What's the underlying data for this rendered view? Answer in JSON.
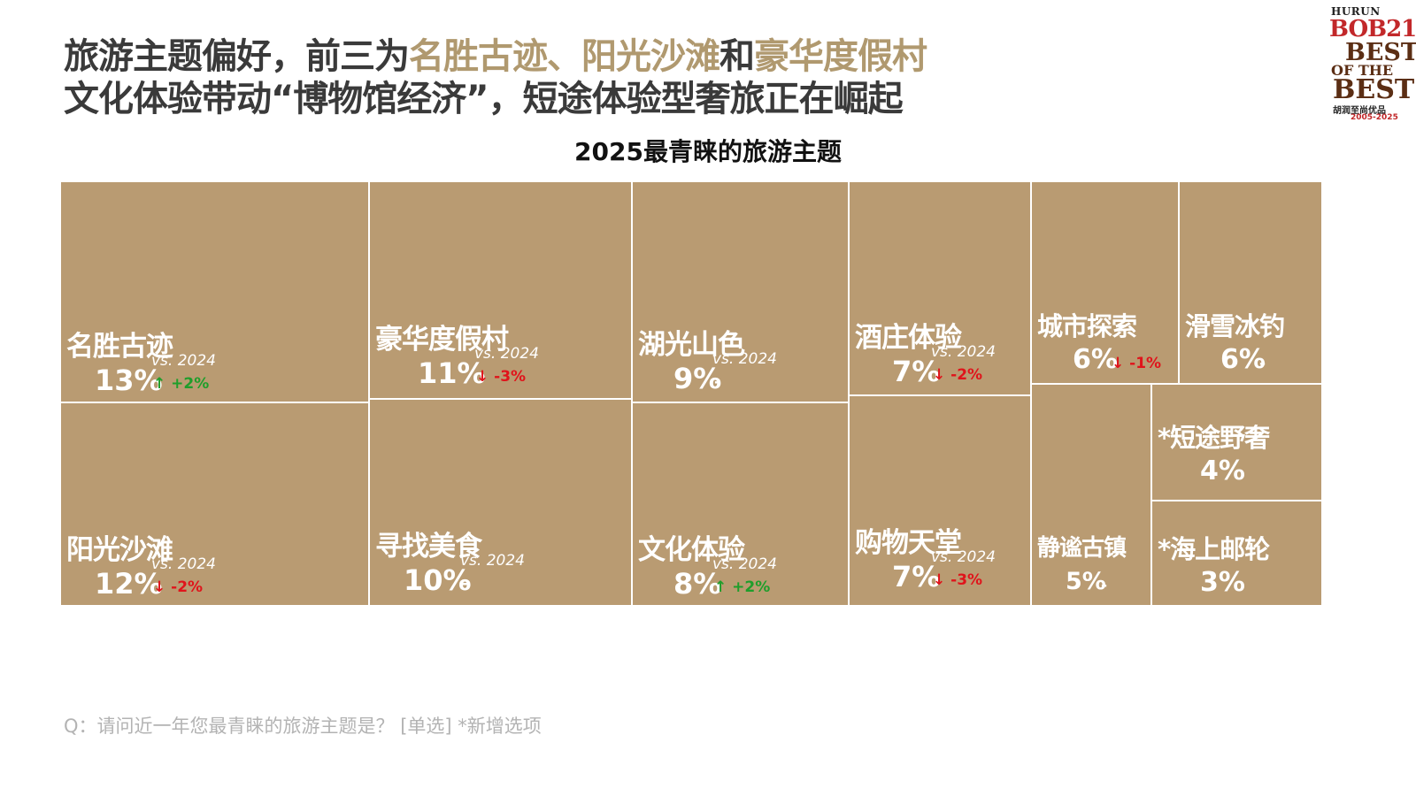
{
  "headline": {
    "line1": [
      {
        "text": "旅游主题偏好，前三为",
        "hl": false
      },
      {
        "text": "名胜古迹、阳光沙滩",
        "hl": true
      },
      {
        "text": "和",
        "hl": false
      },
      {
        "text": "豪华度假村",
        "hl": true
      }
    ],
    "line2": "文化体验带动“博物馆经济”，短途体验型奢旅正在崛起"
  },
  "logo": {
    "brand": "HURUN",
    "bob": "BOB21",
    "best1": "BEST",
    "of_the": "OF THE",
    "best2": "BEST",
    "cn": "胡润至尚优品",
    "years": "2005-2025"
  },
  "footnote": "Q：请问近一年您最青睐的旅游主题是？ [单选] *新增选项",
  "colors": {
    "tile": "#b99b72",
    "up": "#1f9e2b",
    "down": "#e0141b",
    "highlight": "#b0996f"
  },
  "chart_data": {
    "type": "treemap",
    "title": "2025最青睐的旅游主题",
    "vs_label": "vs. 2024",
    "items": [
      {
        "name": "名胜古迹",
        "value": 13,
        "value_label": "13%",
        "change": "+2%",
        "direction": "up"
      },
      {
        "name": "阳光沙滩",
        "value": 12,
        "value_label": "12%",
        "change": "-2%",
        "direction": "down"
      },
      {
        "name": "豪华度假村",
        "value": 11,
        "value_label": "11%",
        "change": "-3%",
        "direction": "down"
      },
      {
        "name": "寻找美食",
        "value": 10,
        "value_label": "10%",
        "change": "-",
        "direction": "flat"
      },
      {
        "name": "湖光山色",
        "value": 9,
        "value_label": "9%",
        "change": "-",
        "direction": "flat"
      },
      {
        "name": "文化体验",
        "value": 8,
        "value_label": "8%",
        "change": "+2%",
        "direction": "up"
      },
      {
        "name": "酒庄体验",
        "value": 7,
        "value_label": "7%",
        "change": "-2%",
        "direction": "down"
      },
      {
        "name": "购物天堂",
        "value": 7,
        "value_label": "7%",
        "change": "-3%",
        "direction": "down"
      },
      {
        "name": "城市探索",
        "value": 6,
        "value_label": "6%",
        "change": "-1%",
        "direction": "down"
      },
      {
        "name": "滑雪冰钓",
        "value": 6,
        "value_label": "6%",
        "change": "-",
        "direction": "flat"
      },
      {
        "name": "静谧古镇",
        "value": 5,
        "value_label": "5%",
        "change": "-",
        "direction": "flat"
      },
      {
        "name": "*短途野奢",
        "value": 4,
        "value_label": "4%",
        "change": null,
        "direction": null
      },
      {
        "name": "*海上邮轮",
        "value": 3,
        "value_label": "3%",
        "change": null,
        "direction": null
      }
    ]
  }
}
